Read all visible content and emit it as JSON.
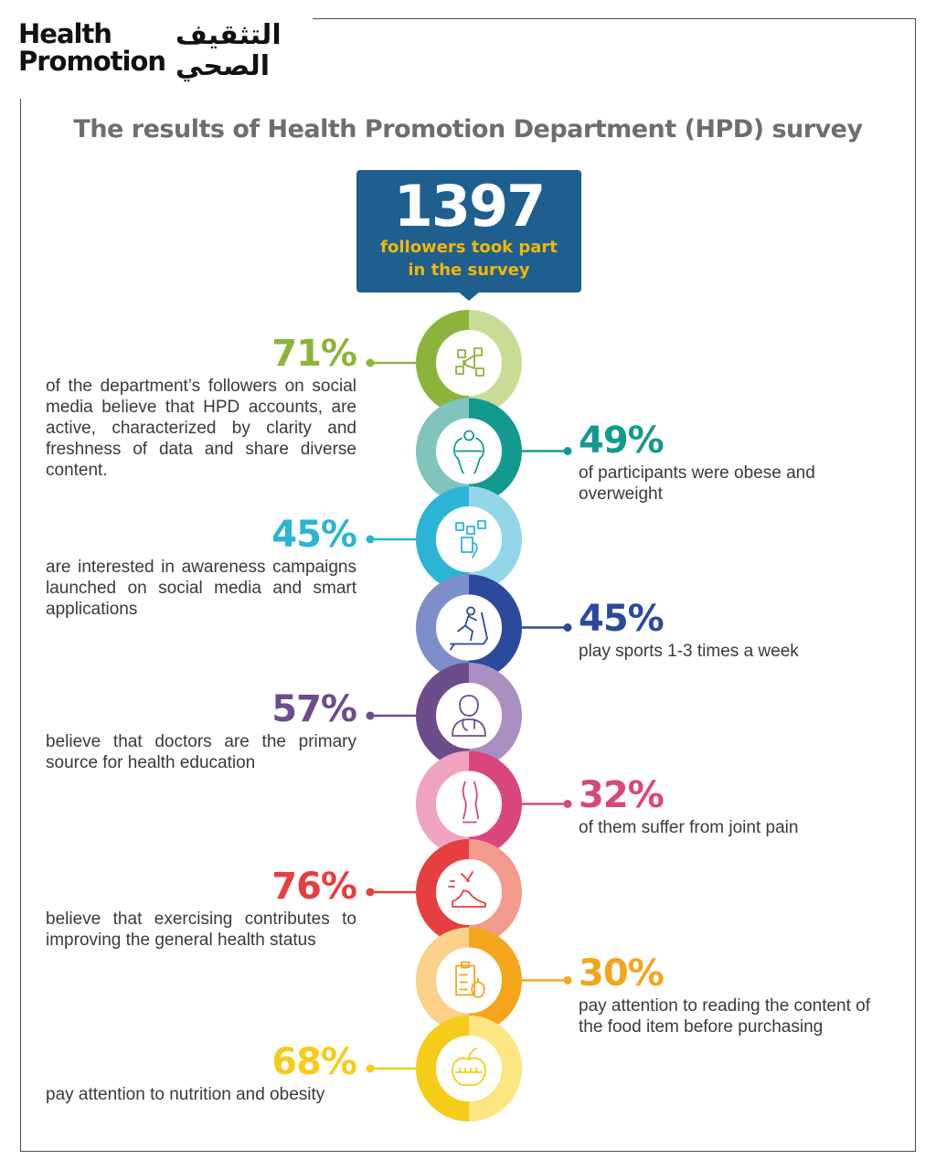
{
  "logo": {
    "line1": "Health",
    "line2": "Promotion",
    "arabic_line1": "التثقيف",
    "arabic_line2": "الصحي"
  },
  "title": "The results of Health Promotion Department (HPD) survey",
  "callout": {
    "number": "1397",
    "caption": "followers took part in the survey"
  },
  "stats": [
    {
      "percent": "71%",
      "text": "of the department’s followers on social media believe that HPD accounts, are active, characterized by clarity and freshness of data and share diverse content.",
      "color": "#8cb43c",
      "light": "#c8dc96",
      "icon": "social-media-megaphone-icon",
      "side": "left"
    },
    {
      "percent": "49%",
      "text": "of participants were obese and overweight",
      "color": "#139a8f",
      "light": "#7fc4bd",
      "icon": "obese-person-icon",
      "side": "right"
    },
    {
      "percent": "45%",
      "text": "are interested in awareness campaigns launched on social media and smart applications",
      "color": "#2bb4d6",
      "light": "#93d6ea",
      "icon": "smartphone-apps-icon",
      "side": "left"
    },
    {
      "percent": "45%",
      "text": "play sports 1-3 times a week",
      "color": "#2c4a9b",
      "light": "#7d8fca",
      "icon": "treadmill-runner-icon",
      "side": "right"
    },
    {
      "percent": "57%",
      "text": "believe that doctors are the primary source for health education",
      "color": "#6d4c8c",
      "light": "#a98fc2",
      "icon": "doctor-icon",
      "side": "left"
    },
    {
      "percent": "32%",
      "text": "of them suffer from joint pain",
      "color": "#d9467d",
      "light": "#f0a3c0",
      "icon": "knee-joint-icon",
      "side": "right"
    },
    {
      "percent": "76%",
      "text": "believe that exercising contributes to improving the general health status",
      "color": "#e53f3f",
      "light": "#f29a8c",
      "icon": "running-shoe-icon",
      "side": "left"
    },
    {
      "percent": "30%",
      "text": "pay attention to reading the content of the food item before purchasing",
      "color": "#f4a51c",
      "light": "#fbd089",
      "icon": "clipboard-apple-icon",
      "side": "right"
    },
    {
      "percent": "68%",
      "text": "pay attention to nutrition and obesity",
      "color": "#f5cc1a",
      "light": "#fbe681",
      "icon": "apple-tape-icon",
      "side": "left"
    }
  ]
}
